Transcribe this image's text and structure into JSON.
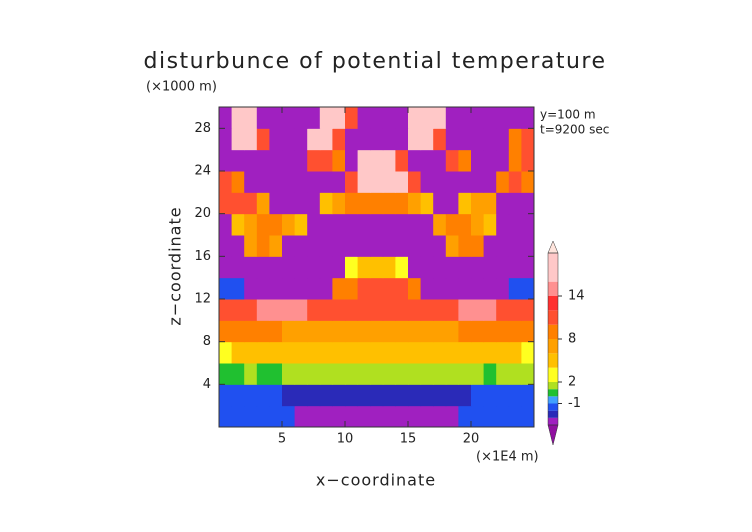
{
  "chart_data": {
    "type": "contour",
    "title": "disturbunce of potential temperature",
    "y_unit": "(×1000 m)",
    "annotations": [
      "y=100 m",
      "t=9200 sec"
    ],
    "xlabel": "x−coordinate",
    "ylabel": "z−coordinate",
    "x_unit": "(×1E4 m)",
    "xlim": [
      0,
      25
    ],
    "ylim": [
      0,
      30
    ],
    "xticks": [
      5,
      10,
      15,
      20
    ],
    "yticks": [
      4,
      8,
      12,
      16,
      20,
      24,
      28
    ],
    "x": [
      0.5,
      1.5,
      2.5,
      3.5,
      4.5,
      5.5,
      6.5,
      7.5,
      8.5,
      9.5,
      10.5,
      11.5,
      12.5,
      13.5,
      14.5,
      15.5,
      16.5,
      17.5,
      18.5,
      19.5,
      20.5,
      21.5,
      22.5,
      23.5,
      24.5
    ],
    "y": [
      1,
      3,
      5,
      7,
      9,
      11,
      13,
      15,
      17,
      19,
      21,
      23,
      25,
      27,
      29
    ],
    "z": [
      [
        -1.5,
        -1.5,
        -1.5,
        -1.5,
        -1.5,
        -1.5,
        -4,
        -4,
        -4,
        -4,
        -4,
        -4,
        -4,
        -4,
        -4,
        -4,
        -4,
        -4,
        -4,
        -1.5,
        -1.5,
        -1.5,
        -1.5,
        -1.5,
        -1.5
      ],
      [
        -1.5,
        -1.5,
        -1.5,
        -1.5,
        -1.5,
        -2.5,
        -2.5,
        -2.5,
        -2.5,
        -2.5,
        -2.5,
        -2.5,
        -2.5,
        -2.5,
        -2.5,
        -2.5,
        -2.5,
        -2.5,
        -2.5,
        -2.5,
        -1.5,
        -1.5,
        -1.5,
        -1.5,
        -1.5
      ],
      [
        0.5,
        0.5,
        1.5,
        0.5,
        0.5,
        1.5,
        1.5,
        1.5,
        1.5,
        1.5,
        1.5,
        1.5,
        1.5,
        1.5,
        1.5,
        1.5,
        1.5,
        1.5,
        1.5,
        1.5,
        1.5,
        0.5,
        1.5,
        1.5,
        1.5
      ],
      [
        3,
        5,
        5,
        5,
        5,
        5,
        5,
        5,
        5,
        5,
        5,
        5,
        5,
        5,
        5,
        5,
        5,
        5,
        5,
        5,
        5,
        5,
        5,
        5,
        3
      ],
      [
        9,
        9,
        9,
        9,
        9,
        7,
        7,
        7,
        7,
        7,
        7,
        7,
        7,
        7,
        7,
        7,
        7,
        7,
        7,
        9,
        9,
        9,
        9,
        9,
        9
      ],
      [
        11,
        11,
        11,
        15,
        15,
        15,
        15,
        11,
        11,
        11,
        11,
        11,
        11,
        11,
        11,
        11,
        11,
        11,
        11,
        15,
        15,
        15,
        11,
        11,
        11
      ],
      [
        -1.5,
        -1.5,
        -4,
        -4,
        -4,
        -4,
        -4,
        -4,
        -4,
        9,
        9,
        11,
        11,
        11,
        11,
        9,
        -4,
        -4,
        -4,
        -4,
        -4,
        -4,
        -4,
        -1.5,
        -1.5
      ],
      [
        -4,
        -4,
        -4,
        -4,
        -4,
        -4,
        -4,
        -4,
        -4,
        -4,
        3,
        5,
        5,
        5,
        3,
        -4,
        -4,
        -4,
        -4,
        -4,
        -4,
        -4,
        -4,
        -4,
        -4
      ],
      [
        -4,
        -4,
        7,
        8,
        7,
        -4,
        -4,
        -4,
        -4,
        -4,
        -4,
        -4,
        -4,
        -4,
        -4,
        -4,
        -4,
        -4,
        7,
        8,
        8,
        -4,
        -4,
        -4,
        -4
      ],
      [
        -4,
        5,
        7,
        8,
        8,
        7,
        5,
        -4,
        -4,
        -4,
        -4,
        -4,
        -4,
        -4,
        -4,
        -4,
        -4,
        7,
        8,
        8,
        7,
        5,
        -4,
        -4,
        -4
      ],
      [
        10,
        10,
        10,
        7,
        -4,
        -4,
        -4,
        -4,
        5,
        7,
        8,
        8,
        8,
        8,
        8,
        7,
        5,
        -4,
        -4,
        5,
        7,
        6,
        -4,
        -4,
        -4
      ],
      [
        10,
        8,
        -4,
        -4,
        -4,
        -4,
        -4,
        -4,
        -4,
        -4,
        10,
        17,
        17,
        17,
        17,
        10,
        -4,
        -4,
        -4,
        -4,
        -4,
        -4,
        9,
        10,
        8
      ],
      [
        -4,
        -4,
        -4,
        -4,
        -4,
        -4,
        -4,
        10,
        10,
        9,
        -4,
        17,
        17,
        17,
        10,
        -4,
        -4,
        -4,
        10,
        9,
        -4,
        -4,
        -4,
        8,
        10
      ],
      [
        -4,
        17,
        17,
        10,
        -4,
        -4,
        -4,
        17,
        17,
        10,
        -4,
        -4,
        -4,
        -4,
        -4,
        17,
        17,
        10,
        -4,
        -4,
        -4,
        -4,
        -4,
        8,
        10
      ],
      [
        -4,
        17,
        17,
        -4,
        -4,
        -4,
        -4,
        -4,
        17,
        17,
        10,
        -4,
        -4,
        -4,
        -4,
        17,
        17,
        17,
        -4,
        -4,
        -4,
        -4,
        -4,
        -4,
        -4
      ]
    ],
    "levels": [
      -4,
      -3,
      -2,
      -1,
      0,
      1,
      2,
      4,
      6,
      8,
      10,
      12,
      14,
      16,
      20
    ],
    "colors": [
      "#a020c0",
      "#2a2ab8",
      "#2050f0",
      "#40a0ff",
      "#20c030",
      "#b0e020",
      "#ffff20",
      "#ffc000",
      "#ffa000",
      "#ff8000",
      "#ff5030",
      "#ff3030",
      "#ff9090",
      "#ffc8c8"
    ],
    "under_color": "#9010a0",
    "over_color": "#ffe4dc",
    "colorbar_ticks": [
      -1,
      2,
      8,
      14
    ]
  }
}
